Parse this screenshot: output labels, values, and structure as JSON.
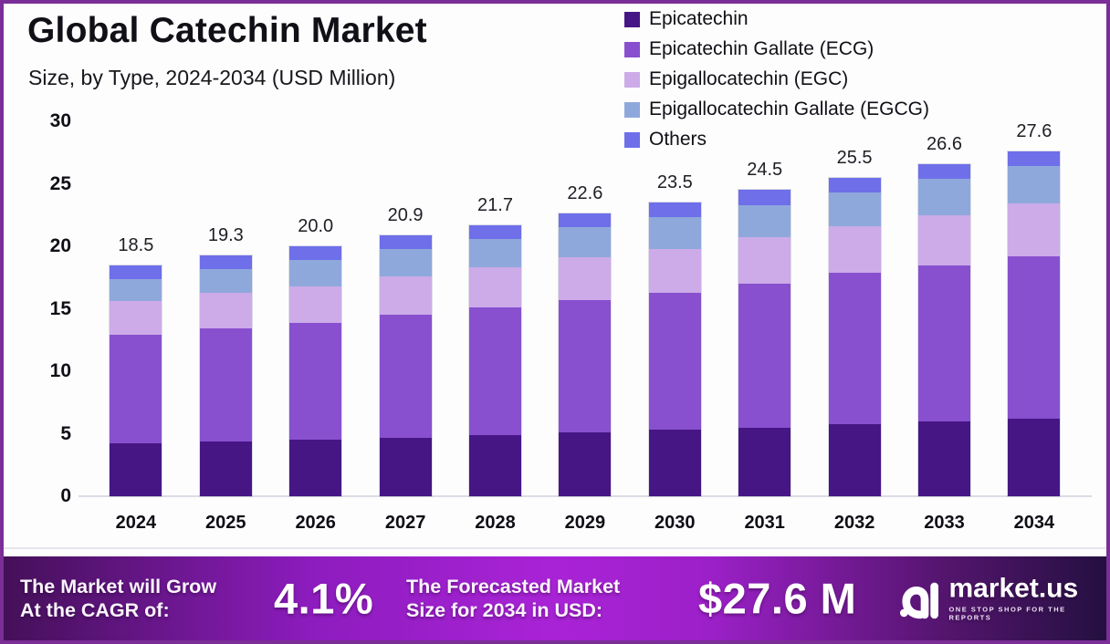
{
  "header": {
    "title": "Global Catechin Market",
    "subtitle": "Size, by Type, 2024-2034 (USD Million)"
  },
  "chart_data": {
    "type": "bar",
    "stacked": true,
    "title": "Global Catechin Market",
    "subtitle": "Size, by Type, 2024-2034 (USD Million)",
    "unit": "USD Million",
    "categories": [
      "2024",
      "2025",
      "2026",
      "2027",
      "2028",
      "2029",
      "2030",
      "2031",
      "2032",
      "2033",
      "2034"
    ],
    "series": [
      {
        "name": "Epicatechin",
        "color": "#471685",
        "values": [
          4.2,
          4.4,
          4.5,
          4.7,
          4.9,
          5.1,
          5.3,
          5.5,
          5.8,
          6.0,
          6.2
        ]
      },
      {
        "name": "Epicatechin Gallate (ECG)",
        "color": "#8850cf",
        "values": [
          8.7,
          9.0,
          9.4,
          9.8,
          10.2,
          10.6,
          11.0,
          11.5,
          12.1,
          12.5,
          13.0
        ]
      },
      {
        "name": "Epigallocatechin (EGC)",
        "color": "#ccabe8",
        "values": [
          2.7,
          2.9,
          2.9,
          3.1,
          3.2,
          3.4,
          3.5,
          3.7,
          3.7,
          4.0,
          4.2
        ]
      },
      {
        "name": "Epigallocatechin Gallate (EGCG)",
        "color": "#8ea8db",
        "values": [
          1.8,
          1.9,
          2.1,
          2.2,
          2.3,
          2.4,
          2.5,
          2.6,
          2.7,
          2.9,
          3.0
        ]
      },
      {
        "name": "Others",
        "color": "#6e6fe9",
        "values": [
          1.1,
          1.1,
          1.1,
          1.1,
          1.1,
          1.1,
          1.2,
          1.2,
          1.2,
          1.2,
          1.2
        ]
      }
    ],
    "totals": [
      18.5,
      19.3,
      20.0,
      20.9,
      21.7,
      22.6,
      23.5,
      24.5,
      25.5,
      26.6,
      27.6
    ],
    "total_labels": [
      "18.5",
      "19.3",
      "20.0",
      "20.9",
      "21.7",
      "22.6",
      "23.5",
      "24.5",
      "25.5",
      "26.6",
      "27.6"
    ],
    "y_axis": {
      "min": 0,
      "max": 30,
      "ticks": [
        0,
        5,
        10,
        15,
        20,
        25,
        30
      ]
    },
    "grid": false,
    "legend_position": "top-right"
  },
  "footer": {
    "cagr_label_line1": "The Market will Grow",
    "cagr_label_line2": "At the CAGR of:",
    "cagr_value": "4.1%",
    "forecast_label_line1": "The Forecasted Market",
    "forecast_label_line2": "Size for 2034 in USD:",
    "forecast_value": "$27.6 M",
    "brand": {
      "name": "market.us",
      "tagline": "ONE STOP SHOP FOR THE REPORTS"
    }
  },
  "colors": {
    "frame_border": "#7b2e97",
    "footer_gradient_left": "#441058",
    "footer_gradient_center": "#a923d6",
    "footer_gradient_right": "#241040",
    "baseline": "#dcdce4"
  }
}
